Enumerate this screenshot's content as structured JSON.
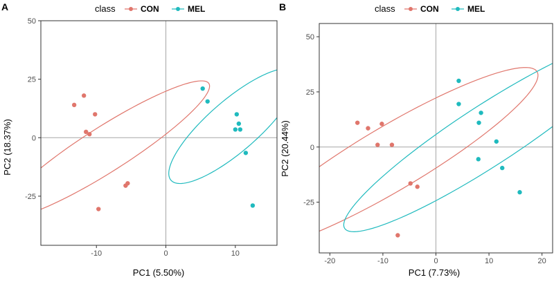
{
  "chart_data": [
    {
      "type": "scatter",
      "panel_label": "A",
      "legend_title": "class",
      "xlabel": "PC1 (5.50%)",
      "ylabel": "PC2 (18.37%)",
      "xlim": [
        -18,
        16
      ],
      "ylim": [
        -46,
        50
      ],
      "xticks": [
        -10,
        0,
        10
      ],
      "yticks": [
        50,
        25,
        0,
        -25
      ],
      "grid": false,
      "reference_lines": {
        "x": 0,
        "y": 0
      },
      "legend_placement": "top",
      "series": [
        {
          "name": "CON",
          "color": "#E0766C",
          "points": [
            [
              -13.2,
              14
            ],
            [
              -11.8,
              18
            ],
            [
              -10.2,
              10
            ],
            [
              -11.5,
              2.5
            ],
            [
              -11,
              1.5
            ],
            [
              -5.8,
              -20.5
            ],
            [
              -5.5,
              -19.5
            ],
            [
              -9.7,
              -30.5
            ]
          ],
          "ellipse": {
            "cx": -8.7,
            "cy": -5,
            "rx": 32.5,
            "ry": 5.2,
            "angle_deg": 64
          }
        },
        {
          "name": "MEL",
          "color": "#1FBABE",
          "points": [
            [
              5.3,
              21
            ],
            [
              6,
              15.5
            ],
            [
              10.2,
              10
            ],
            [
              10.5,
              6
            ],
            [
              10,
              3.5
            ],
            [
              10.7,
              3.5
            ],
            [
              11.5,
              -6.5
            ],
            [
              12.5,
              -29
            ]
          ],
          "ellipse": {
            "cx": 9.7,
            "cy": 5,
            "rx": 25.8,
            "ry": 5,
            "angle_deg": 72
          }
        }
      ]
    },
    {
      "type": "scatter",
      "panel_label": "B",
      "legend_title": "class",
      "xlabel": "PC1 (7.73%)",
      "ylabel": "PC2 (20.44%)",
      "xlim": [
        -22,
        22
      ],
      "ylim": [
        -48,
        56
      ],
      "xticks": [
        -20,
        -10,
        0,
        10,
        20
      ],
      "yticks": [
        50,
        25,
        0,
        -25
      ],
      "grid": false,
      "reference_lines": {
        "x": 0,
        "y": 0
      },
      "legend_placement": "top",
      "series": [
        {
          "name": "CON",
          "color": "#E0766C",
          "points": [
            [
              -14.8,
              11
            ],
            [
              -12.8,
              8.5
            ],
            [
              -10.2,
              10.5
            ],
            [
              -11,
              1
            ],
            [
              -8.3,
              1
            ],
            [
              -4.8,
              -16.5
            ],
            [
              -3.5,
              -18
            ],
            [
              -7.2,
              -40
            ]
          ],
          "ellipse": {
            "cx": -8.5,
            "cy": -5.2,
            "rx": 48.8,
            "ry": 9.5,
            "angle_deg": 57
          }
        },
        {
          "name": "MEL",
          "color": "#1FBABE",
          "points": [
            [
              4.3,
              30
            ],
            [
              4.3,
              19.5
            ],
            [
              8.1,
              11
            ],
            [
              8.5,
              15.5
            ],
            [
              11.4,
              2.5
            ],
            [
              8,
              -5.5
            ],
            [
              12.5,
              -9.5
            ],
            [
              15.8,
              -20.5
            ]
          ],
          "ellipse": {
            "cx": 9.7,
            "cy": 5.2,
            "rx": 50.6,
            "ry": 8.6,
            "angle_deg": 59
          }
        }
      ]
    }
  ]
}
